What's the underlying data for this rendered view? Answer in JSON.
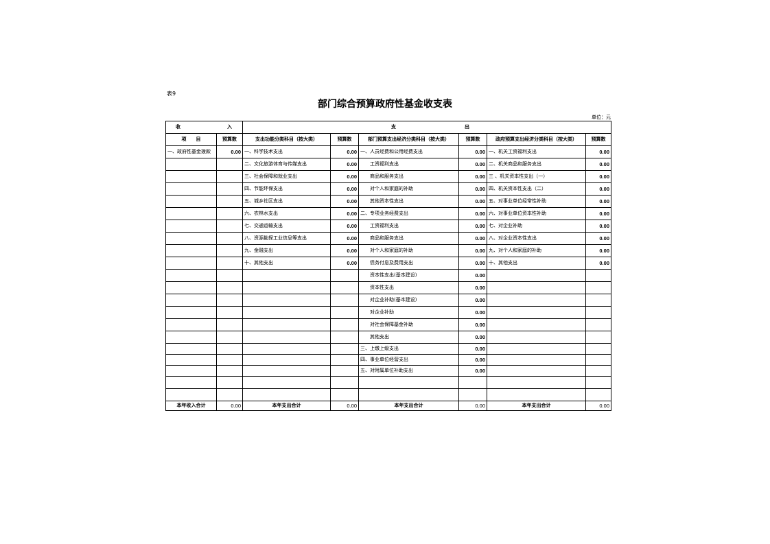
{
  "doc": {
    "tag": "表9",
    "title": "部门综合预算政府性基金收支表",
    "unit": "单位：元"
  },
  "header": {
    "income": "收",
    "income2": "入",
    "expense": "支",
    "expense2": "出",
    "cols": [
      "项　　目",
      "预算数",
      "支出功能分类科目（按大类）",
      "预算数",
      "部门预算支出经济分类科目（按大类）",
      "预算数",
      "政府预算支出经济分类科目（按大类）",
      "预算数"
    ]
  },
  "rows": [
    [
      "一、政府性基金拨款",
      "0.00",
      "一、科学技术支出",
      "0.00",
      "一、人员经费和公用经费支出",
      "0.00",
      "一、机关工资福利支出",
      "0.00"
    ],
    [
      "",
      "",
      "二、文化旅游体育与传媒支出",
      "0.00",
      "工资福利支出",
      "0.00",
      "二、机关商品和服务支出",
      "0.00"
    ],
    [
      "",
      "",
      "三、社会保障和就业支出",
      "0.00",
      "商品和服务支出",
      "0.00",
      "三 、机关资本性支出（一）",
      "0.00"
    ],
    [
      "",
      "",
      "四、节能环保支出",
      "0.00",
      "对个人和家庭的补助",
      "0.00",
      "四、机关资本性支出（二）",
      "0.00"
    ],
    [
      "",
      "",
      "五、城乡社区支出",
      "0.00",
      "其他资本性支出",
      "0.00",
      "五、对事业单位经常性补助",
      "0.00"
    ],
    [
      "",
      "",
      "六、农林水支出",
      "0.00",
      "二、专项业务经费支出",
      "0.00",
      "六、对事业单位资本性补助",
      "0.00"
    ],
    [
      "",
      "",
      "七、交通运输支出",
      "0.00",
      "工资福利支出",
      "0.00",
      "七、对企业补助",
      "0.00"
    ],
    [
      "",
      "",
      "八、资源勘探工业信息等支出",
      "0.00",
      "商品和服务支出",
      "0.00",
      "八、对企业资本性支出",
      "0.00"
    ],
    [
      "",
      "",
      "九、金融支出",
      "0.00",
      "对个人和家庭的补助",
      "0.00",
      "九、对个人和家庭的补助",
      "0.00"
    ],
    [
      "",
      "",
      "十、其他支出",
      "0.00",
      "债务付息及费用支出",
      "0.00",
      "十、其他支出",
      "0.00"
    ],
    [
      "",
      "",
      "",
      "",
      "资本性支出(基本建设)",
      "0.00",
      "",
      ""
    ],
    [
      "",
      "",
      "",
      "",
      "资本性支出",
      "0.00",
      "",
      ""
    ],
    [
      "",
      "",
      "",
      "",
      "对企业补助(基本建设)",
      "0.00",
      "",
      ""
    ],
    [
      "",
      "",
      "",
      "",
      "对企业补助",
      "0.00",
      "",
      ""
    ],
    [
      "",
      "",
      "",
      "",
      "对社会保障基金补助",
      "0.00",
      "",
      ""
    ],
    [
      "",
      "",
      "",
      "",
      "其他支出",
      "0.00",
      "",
      ""
    ],
    [
      "",
      "",
      "",
      "",
      "三、上缴上级支出",
      "0.00",
      "",
      ""
    ],
    [
      "",
      "",
      "",
      "",
      "四、事业单位经营支出",
      "0.00",
      "",
      ""
    ],
    [
      "",
      "",
      "",
      "",
      "五、对附属单位补助支出",
      "0.00",
      "",
      ""
    ],
    [
      "",
      "",
      "",
      "",
      "",
      "",
      "",
      ""
    ],
    [
      "",
      "",
      "",
      "",
      "",
      "",
      "",
      ""
    ]
  ],
  "totals": [
    "本年收入合计",
    "0.00",
    "本年支出合计",
    "0.00",
    "本年支出合计",
    "0.00",
    "本年支出合计",
    "0.00"
  ]
}
